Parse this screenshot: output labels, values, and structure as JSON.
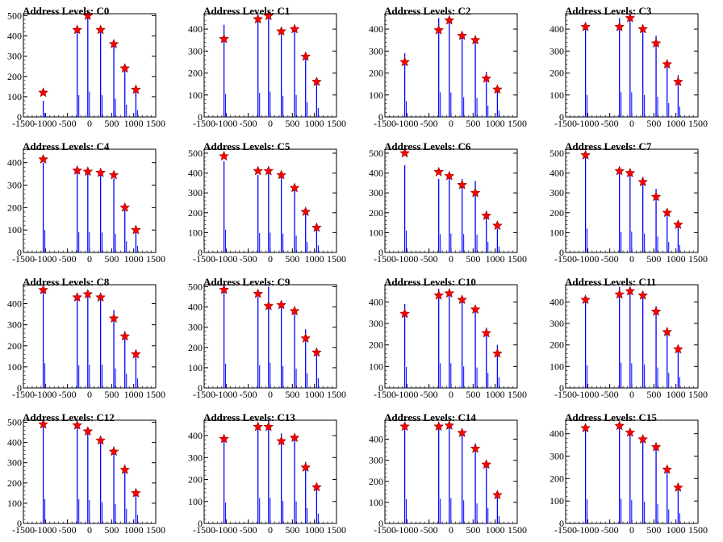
{
  "chart_data": [
    {
      "type": "bar",
      "title": "Address Levels: C0",
      "xlim": [
        -1500,
        1500
      ],
      "ylim": [
        0,
        510
      ],
      "yticks": [
        0,
        100,
        200,
        300,
        400,
        500
      ],
      "xticks": [
        -1500,
        -1000,
        -500,
        0,
        500,
        1000,
        1500
      ],
      "x": [
        -1050,
        -1000,
        -280,
        -40,
        250,
        550,
        800,
        1050
      ],
      "y": [
        80,
        10,
        430,
        500,
        430,
        360,
        240,
        135
      ],
      "peaks": [
        [
          -1050,
          120
        ],
        [
          -280,
          430
        ],
        [
          -40,
          500
        ],
        [
          250,
          430
        ],
        [
          550,
          360
        ],
        [
          800,
          240
        ],
        [
          1050,
          135
        ]
      ]
    },
    {
      "type": "bar",
      "title": "Address Levels: C1",
      "xlim": [
        -1500,
        1500
      ],
      "ylim": [
        0,
        470
      ],
      "yticks": [
        0,
        100,
        200,
        300,
        400
      ],
      "xticks": [
        -1500,
        -1000,
        -500,
        0,
        500,
        1000,
        1500
      ],
      "x": [
        -1050,
        -280,
        -40,
        250,
        550,
        800,
        1050
      ],
      "y": [
        420,
        440,
        460,
        385,
        400,
        270,
        165
      ],
      "peaks": [
        [
          -1050,
          355
        ],
        [
          -280,
          445
        ],
        [
          -40,
          460
        ],
        [
          250,
          390
        ],
        [
          550,
          400
        ],
        [
          800,
          275
        ],
        [
          1050,
          160
        ]
      ]
    },
    {
      "type": "bar",
      "title": "Address Levels: C2",
      "xlim": [
        -1500,
        1500
      ],
      "ylim": [
        0,
        470
      ],
      "yticks": [
        0,
        100,
        200,
        300,
        400
      ],
      "xticks": [
        -1500,
        -1000,
        -500,
        0,
        500,
        1000,
        1500
      ],
      "x": [
        -1050,
        -280,
        -40,
        250,
        550,
        800,
        1050
      ],
      "y": [
        290,
        450,
        445,
        360,
        345,
        205,
        120
      ],
      "peaks": [
        [
          -1050,
          250
        ],
        [
          -280,
          395
        ],
        [
          -40,
          440
        ],
        [
          250,
          370
        ],
        [
          550,
          350
        ],
        [
          800,
          175
        ],
        [
          1050,
          125
        ]
      ]
    },
    {
      "type": "bar",
      "title": "Address Levels: C3",
      "xlim": [
        -1500,
        1500
      ],
      "ylim": [
        0,
        470
      ],
      "yticks": [
        0,
        100,
        200,
        300,
        400
      ],
      "xticks": [
        -1500,
        -1000,
        -500,
        0,
        500,
        1000,
        1500
      ],
      "x": [
        -1050,
        -280,
        -40,
        250,
        550,
        800,
        1050
      ],
      "y": [
        400,
        450,
        450,
        400,
        370,
        250,
        190
      ],
      "peaks": [
        [
          -1050,
          410
        ],
        [
          -280,
          410
        ],
        [
          -40,
          450
        ],
        [
          250,
          400
        ],
        [
          550,
          335
        ],
        [
          800,
          240
        ],
        [
          1050,
          160
        ]
      ]
    },
    {
      "type": "bar",
      "title": "Address Levels: C4",
      "xlim": [
        -1500,
        1500
      ],
      "ylim": [
        0,
        460
      ],
      "yticks": [
        0,
        100,
        200,
        300,
        400
      ],
      "xticks": [
        -1500,
        -1000,
        -500,
        0,
        500,
        1000,
        1500
      ],
      "x": [
        -1050,
        -280,
        -40,
        250,
        550,
        800,
        1050
      ],
      "y": [
        400,
        360,
        360,
        355,
        330,
        200,
        120
      ],
      "peaks": [
        [
          -1050,
          415
        ],
        [
          -280,
          365
        ],
        [
          -40,
          360
        ],
        [
          250,
          355
        ],
        [
          550,
          345
        ],
        [
          800,
          200
        ],
        [
          1050,
          100
        ]
      ]
    },
    {
      "type": "bar",
      "title": "Address Levels: C5",
      "xlim": [
        -1500,
        1500
      ],
      "ylim": [
        0,
        520
      ],
      "yticks": [
        0,
        100,
        200,
        300,
        400,
        500
      ],
      "xticks": [
        -1500,
        -1000,
        -500,
        0,
        500,
        1000,
        1500
      ],
      "x": [
        -1050,
        -280,
        -40,
        250,
        550,
        800,
        1050
      ],
      "y": [
        460,
        390,
        400,
        380,
        340,
        210,
        140
      ],
      "peaks": [
        [
          -1050,
          485
        ],
        [
          -280,
          410
        ],
        [
          -40,
          410
        ],
        [
          250,
          390
        ],
        [
          550,
          325
        ],
        [
          800,
          205
        ],
        [
          1050,
          125
        ]
      ]
    },
    {
      "type": "bar",
      "title": "Address Levels: C6",
      "xlim": [
        -1500,
        1500
      ],
      "ylim": [
        0,
        520
      ],
      "yticks": [
        0,
        100,
        200,
        300,
        400,
        500
      ],
      "xticks": [
        -1500,
        -1000,
        -500,
        0,
        500,
        1000,
        1500
      ],
      "x": [
        -1050,
        -280,
        -40,
        250,
        550,
        800,
        1050
      ],
      "y": [
        440,
        370,
        380,
        370,
        360,
        210,
        120
      ],
      "peaks": [
        [
          -1050,
          500
        ],
        [
          -280,
          405
        ],
        [
          -40,
          385
        ],
        [
          250,
          340
        ],
        [
          550,
          300
        ],
        [
          800,
          185
        ],
        [
          1050,
          135
        ]
      ]
    },
    {
      "type": "bar",
      "title": "Address Levels: C7",
      "xlim": [
        -1500,
        1500
      ],
      "ylim": [
        0,
        520
      ],
      "yticks": [
        0,
        100,
        200,
        300,
        400,
        500
      ],
      "xticks": [
        -1500,
        -1000,
        -500,
        0,
        500,
        1000,
        1500
      ],
      "x": [
        -1050,
        -280,
        -40,
        250,
        550,
        800,
        1050
      ],
      "y": [
        480,
        410,
        420,
        380,
        320,
        210,
        150
      ],
      "peaks": [
        [
          -1050,
          490
        ],
        [
          -280,
          410
        ],
        [
          -40,
          400
        ],
        [
          250,
          355
        ],
        [
          550,
          280
        ],
        [
          800,
          200
        ],
        [
          1050,
          140
        ]
      ]
    },
    {
      "type": "bar",
      "title": "Address Levels: C8",
      "xlim": [
        -1500,
        1500
      ],
      "ylim": [
        0,
        490
      ],
      "yticks": [
        0,
        100,
        200,
        300,
        400
      ],
      "xticks": [
        -1500,
        -1000,
        -500,
        0,
        500,
        1000,
        1500
      ],
      "x": [
        -1050,
        -280,
        -40,
        250,
        550,
        800,
        1050
      ],
      "y": [
        470,
        430,
        440,
        440,
        370,
        270,
        180
      ],
      "peaks": [
        [
          -1050,
          465
        ],
        [
          -280,
          430
        ],
        [
          -40,
          445
        ],
        [
          250,
          430
        ],
        [
          550,
          330
        ],
        [
          800,
          245
        ],
        [
          1050,
          160
        ]
      ]
    },
    {
      "type": "bar",
      "title": "Address Levels: C9",
      "xlim": [
        -1500,
        1500
      ],
      "ylim": [
        0,
        510
      ],
      "yticks": [
        0,
        100,
        200,
        300,
        400,
        500
      ],
      "xticks": [
        -1500,
        -1000,
        -500,
        0,
        500,
        1000,
        1500
      ],
      "x": [
        -1050,
        -280,
        -40,
        250,
        550,
        800,
        1050
      ],
      "y": [
        480,
        450,
        500,
        430,
        380,
        290,
        190
      ],
      "peaks": [
        [
          -1050,
          485
        ],
        [
          -280,
          465
        ],
        [
          -40,
          405
        ],
        [
          250,
          410
        ],
        [
          550,
          380
        ],
        [
          800,
          245
        ],
        [
          1050,
          175
        ]
      ]
    },
    {
      "type": "bar",
      "title": "Address Levels: C10",
      "xlim": [
        -1500,
        1500
      ],
      "ylim": [
        0,
        480
      ],
      "yticks": [
        0,
        100,
        200,
        300,
        400
      ],
      "xticks": [
        -1500,
        -1000,
        -500,
        0,
        500,
        1000,
        1500
      ],
      "x": [
        -1050,
        -280,
        -40,
        250,
        550,
        800,
        1050
      ],
      "y": [
        390,
        460,
        460,
        400,
        380,
        280,
        200
      ],
      "peaks": [
        [
          -1050,
          345
        ],
        [
          -280,
          430
        ],
        [
          -40,
          440
        ],
        [
          250,
          410
        ],
        [
          550,
          365
        ],
        [
          800,
          255
        ],
        [
          1050,
          160
        ]
      ]
    },
    {
      "type": "bar",
      "title": "Address Levels: C11",
      "xlim": [
        -1500,
        1500
      ],
      "ylim": [
        0,
        480
      ],
      "yticks": [
        0,
        100,
        200,
        300,
        400
      ],
      "xticks": [
        -1500,
        -1000,
        -500,
        0,
        500,
        1000,
        1500
      ],
      "x": [
        -1050,
        -280,
        -40,
        250,
        550,
        800,
        1050
      ],
      "y": [
        420,
        470,
        460,
        440,
        380,
        280,
        200
      ],
      "peaks": [
        [
          -1050,
          410
        ],
        [
          -280,
          435
        ],
        [
          -40,
          450
        ],
        [
          250,
          430
        ],
        [
          550,
          355
        ],
        [
          800,
          260
        ],
        [
          1050,
          180
        ]
      ]
    },
    {
      "type": "bar",
      "title": "Address Levels: C12",
      "xlim": [
        -1500,
        1500
      ],
      "ylim": [
        0,
        510
      ],
      "yticks": [
        0,
        100,
        200,
        300,
        400,
        500
      ],
      "xticks": [
        -1500,
        -1000,
        -500,
        0,
        500,
        1000,
        1500
      ],
      "x": [
        -1050,
        -280,
        -40,
        250,
        550,
        800,
        1050
      ],
      "y": [
        480,
        480,
        460,
        420,
        380,
        290,
        170
      ],
      "peaks": [
        [
          -1050,
          490
        ],
        [
          -280,
          485
        ],
        [
          -40,
          455
        ],
        [
          250,
          410
        ],
        [
          550,
          355
        ],
        [
          800,
          265
        ],
        [
          1050,
          150
        ]
      ]
    },
    {
      "type": "bar",
      "title": "Address Levels: C13",
      "xlim": [
        -1500,
        1500
      ],
      "ylim": [
        0,
        470
      ],
      "yticks": [
        0,
        100,
        200,
        300,
        400
      ],
      "xticks": [
        -1500,
        -1000,
        -500,
        0,
        500,
        1000,
        1500
      ],
      "x": [
        -1050,
        -280,
        -40,
        250,
        550,
        800,
        1050
      ],
      "y": [
        380,
        460,
        470,
        410,
        400,
        280,
        180
      ],
      "peaks": [
        [
          -1050,
          385
        ],
        [
          -280,
          440
        ],
        [
          -40,
          440
        ],
        [
          250,
          375
        ],
        [
          550,
          390
        ],
        [
          800,
          255
        ],
        [
          1050,
          165
        ]
      ]
    },
    {
      "type": "bar",
      "title": "Address Levels: C14",
      "xlim": [
        -1500,
        1500
      ],
      "ylim": [
        0,
        490
      ],
      "yticks": [
        0,
        100,
        200,
        300,
        400
      ],
      "xticks": [
        -1500,
        -1000,
        -500,
        0,
        500,
        1000,
        1500
      ],
      "x": [
        -1050,
        -280,
        -40,
        250,
        550,
        800,
        1050
      ],
      "y": [
        460,
        470,
        480,
        440,
        380,
        290,
        140
      ],
      "peaks": [
        [
          -1050,
          460
        ],
        [
          -280,
          460
        ],
        [
          -40,
          465
        ],
        [
          250,
          430
        ],
        [
          550,
          355
        ],
        [
          800,
          280
        ],
        [
          1050,
          135
        ]
      ]
    },
    {
      "type": "bar",
      "title": "Address Levels: C15",
      "xlim": [
        -1500,
        1500
      ],
      "ylim": [
        0,
        460
      ],
      "yticks": [
        0,
        100,
        200,
        300,
        400
      ],
      "xticks": [
        -1500,
        -1000,
        -500,
        0,
        500,
        1000,
        1500
      ],
      "x": [
        -1050,
        -280,
        -40,
        250,
        550,
        800,
        1050
      ],
      "y": [
        430,
        440,
        420,
        390,
        350,
        250,
        180
      ],
      "peaks": [
        [
          -1050,
          425
        ],
        [
          -280,
          435
        ],
        [
          -40,
          405
        ],
        [
          250,
          375
        ],
        [
          550,
          340
        ],
        [
          800,
          240
        ],
        [
          1050,
          160
        ]
      ]
    }
  ]
}
